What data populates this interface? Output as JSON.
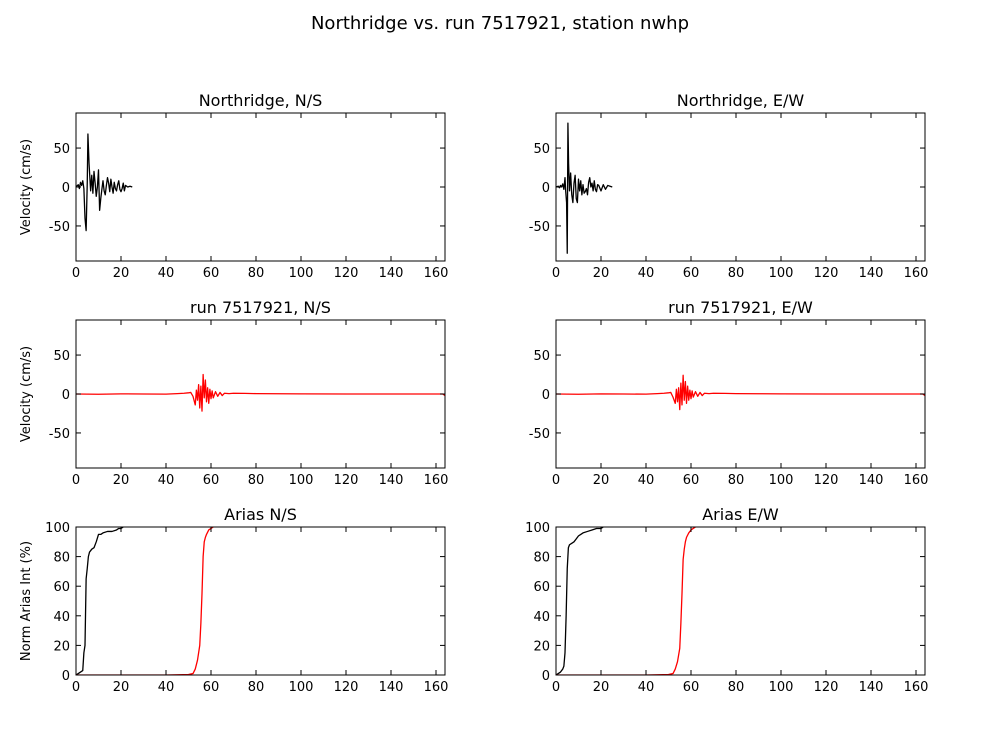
{
  "figure": {
    "title": "Northridge vs. run 7517921, station nwhp"
  },
  "colors": {
    "recorded": "#000000",
    "simulated": "#ff0000"
  },
  "chart_data": [
    {
      "type": "line",
      "title": "Northridge, N/S",
      "xlabel": "",
      "ylabel": "Velocity (cm/s)",
      "xlim": [
        0,
        164
      ],
      "ylim": [
        -95,
        95
      ],
      "xticks": [
        0,
        20,
        40,
        60,
        80,
        100,
        120,
        140,
        160
      ],
      "yticks": [
        -50,
        0,
        50
      ],
      "grid": false,
      "series": [
        {
          "color": "#000000",
          "x": [
            0,
            1,
            1.5,
            2,
            2.5,
            3,
            3.5,
            4,
            4.5,
            5,
            5.3,
            5.8,
            6.5,
            7,
            7.5,
            8,
            8.5,
            9,
            9.5,
            10,
            10.5,
            11,
            11.5,
            12,
            12.5,
            13,
            13.5,
            14,
            14.5,
            15,
            15.5,
            16,
            16.5,
            17,
            17.5,
            18,
            18.5,
            19,
            19.5,
            20,
            20.5,
            21,
            21.5,
            22,
            23,
            24,
            25
          ],
          "y": [
            0,
            3,
            -2,
            6,
            2,
            8,
            -2,
            -40,
            -56,
            5,
            68,
            30,
            -5,
            15,
            -8,
            20,
            5,
            -12,
            0,
            22,
            -30,
            -15,
            -3,
            8,
            -5,
            -10,
            2,
            12,
            5,
            -6,
            10,
            0,
            -8,
            6,
            -2,
            -5,
            3,
            8,
            -3,
            -6,
            -2,
            5,
            -5,
            2,
            0,
            1,
            0
          ]
        }
      ]
    },
    {
      "type": "line",
      "title": "Northridge, E/W",
      "xlabel": "",
      "ylabel": "",
      "xlim": [
        0,
        164
      ],
      "ylim": [
        -95,
        95
      ],
      "xticks": [
        0,
        20,
        40,
        60,
        80,
        100,
        120,
        140,
        160
      ],
      "yticks": [
        -50,
        0,
        50
      ],
      "grid": false,
      "series": [
        {
          "color": "#000000",
          "x": [
            0,
            1,
            1.5,
            2,
            2.5,
            3,
            3.5,
            4,
            4.3,
            4.7,
            5,
            5.3,
            5.6,
            6,
            6.5,
            7,
            7.5,
            8,
            8.5,
            9,
            9.5,
            10,
            10.5,
            11,
            11.5,
            12,
            12.5,
            13,
            13.5,
            14,
            14.5,
            15,
            15.5,
            16,
            16.5,
            17,
            17.5,
            18,
            18.5,
            19,
            20,
            21,
            22,
            23,
            24,
            25
          ],
          "y": [
            0,
            1,
            -1,
            2,
            0,
            4,
            -3,
            12,
            -5,
            -20,
            -85,
            82,
            30,
            -5,
            18,
            -10,
            -20,
            5,
            15,
            -15,
            -20,
            10,
            -5,
            8,
            -10,
            3,
            -8,
            -6,
            -2,
            -10,
            6,
            12,
            0,
            5,
            -5,
            8,
            -3,
            -6,
            3,
            2,
            -5,
            3,
            -3,
            2,
            1,
            0
          ]
        }
      ]
    },
    {
      "type": "line",
      "title": "run 7517921, N/S",
      "xlabel": "",
      "ylabel": "Velocity (cm/s)",
      "xlim": [
        0,
        164
      ],
      "ylim": [
        -95,
        95
      ],
      "xticks": [
        0,
        20,
        40,
        60,
        80,
        100,
        120,
        140,
        160
      ],
      "yticks": [
        -50,
        0,
        50
      ],
      "grid": false,
      "series": [
        {
          "color": "#ff0000",
          "x": [
            0,
            10,
            20,
            30,
            40,
            45,
            48,
            50,
            51,
            52,
            53,
            53.5,
            54,
            54.5,
            55,
            55.5,
            56,
            56.5,
            57,
            57.5,
            58,
            58.5,
            59,
            59.5,
            60,
            60.5,
            61,
            62,
            63,
            64,
            65,
            66,
            68,
            70,
            75,
            80,
            90,
            100,
            120,
            140,
            160,
            163,
            164
          ],
          "y": [
            0,
            -0.3,
            0.2,
            0,
            -0.2,
            0.5,
            1,
            1.5,
            2,
            -3,
            -14,
            5,
            -8,
            12,
            -18,
            10,
            -22,
            25,
            -5,
            18,
            -10,
            8,
            -12,
            6,
            -6,
            4,
            -5,
            3,
            -3,
            2,
            -2,
            1,
            0.5,
            1,
            0.8,
            0.5,
            0.3,
            0.2,
            0,
            0,
            0,
            0,
            -2
          ]
        }
      ]
    },
    {
      "type": "line",
      "title": "run 7517921, E/W",
      "xlabel": "",
      "ylabel": "",
      "xlim": [
        0,
        164
      ],
      "ylim": [
        -95,
        95
      ],
      "xticks": [
        0,
        20,
        40,
        60,
        80,
        100,
        120,
        140,
        160
      ],
      "yticks": [
        -50,
        0,
        50
      ],
      "grid": false,
      "series": [
        {
          "color": "#ff0000",
          "x": [
            0,
            10,
            20,
            30,
            40,
            45,
            48,
            50,
            51,
            52,
            53,
            53.5,
            54,
            54.5,
            55,
            55.5,
            56,
            56.5,
            57,
            57.5,
            58,
            58.5,
            59,
            59.5,
            60,
            60.5,
            61,
            62,
            63,
            64,
            65,
            66,
            68,
            70,
            75,
            80,
            90,
            100,
            120,
            140,
            160,
            163,
            164
          ],
          "y": [
            0,
            -0.3,
            0.2,
            0,
            -0.2,
            0.5,
            1,
            1.5,
            2,
            -4,
            -12,
            6,
            -10,
            8,
            -20,
            14,
            -14,
            24,
            -8,
            16,
            -12,
            10,
            -8,
            5,
            -6,
            4,
            -4,
            3,
            -3,
            2,
            -2,
            1,
            0.5,
            1,
            0.8,
            0.5,
            0.3,
            0.2,
            0,
            0,
            0,
            0,
            -2
          ]
        }
      ]
    },
    {
      "type": "line",
      "title": "Arias N/S",
      "xlabel": "",
      "ylabel": "Norm Arias Int (%)",
      "xlim": [
        0,
        164
      ],
      "ylim": [
        0,
        100
      ],
      "xticks": [
        0,
        20,
        40,
        60,
        80,
        100,
        120,
        140,
        160
      ],
      "yticks": [
        0,
        20,
        40,
        60,
        80,
        100
      ],
      "grid": false,
      "series": [
        {
          "color": "#000000",
          "x": [
            0,
            1,
            2,
            3,
            3.5,
            4,
            4.5,
            5,
            5.5,
            6,
            6.5,
            7,
            8,
            9,
            10,
            11,
            12,
            14,
            16,
            18,
            19,
            20,
            21
          ],
          "y": [
            0,
            1,
            2,
            3,
            15,
            20,
            65,
            72,
            80,
            83,
            84,
            85,
            86,
            90,
            95,
            95,
            96,
            97,
            97,
            98,
            99,
            99,
            100
          ]
        },
        {
          "color": "#ff0000",
          "x": [
            0,
            20,
            40,
            50,
            52,
            53,
            54,
            55,
            55.5,
            56,
            56.5,
            57,
            57.5,
            58,
            59,
            60,
            61
          ],
          "y": [
            0,
            0,
            0,
            0.3,
            1,
            4,
            10,
            20,
            35,
            55,
            80,
            90,
            93,
            95,
            98,
            99,
            100
          ]
        }
      ]
    },
    {
      "type": "line",
      "title": "Arias E/W",
      "xlabel": "",
      "ylabel": "",
      "xlim": [
        0,
        164
      ],
      "ylim": [
        0,
        100
      ],
      "xticks": [
        0,
        20,
        40,
        60,
        80,
        100,
        120,
        140,
        160
      ],
      "yticks": [
        0,
        20,
        40,
        60,
        80,
        100
      ],
      "grid": false,
      "series": [
        {
          "color": "#000000",
          "x": [
            0,
            1,
            2,
            3,
            3.5,
            4,
            4.5,
            5,
            5.5,
            6,
            7,
            8,
            9,
            10,
            11,
            12,
            14,
            16,
            18,
            20,
            21
          ],
          "y": [
            0,
            1,
            2,
            4,
            6,
            15,
            40,
            72,
            86,
            88,
            89,
            90,
            92,
            94,
            95,
            96,
            97,
            98,
            99,
            99,
            100
          ]
        },
        {
          "color": "#ff0000",
          "x": [
            0,
            20,
            40,
            50,
            52,
            53,
            54,
            55,
            55.5,
            56,
            56.5,
            57,
            57.5,
            58,
            59,
            60,
            61,
            62
          ],
          "y": [
            0,
            0,
            0,
            0.3,
            1,
            4,
            9,
            18,
            35,
            55,
            78,
            85,
            90,
            93,
            96,
            98,
            99,
            100
          ]
        }
      ]
    }
  ]
}
